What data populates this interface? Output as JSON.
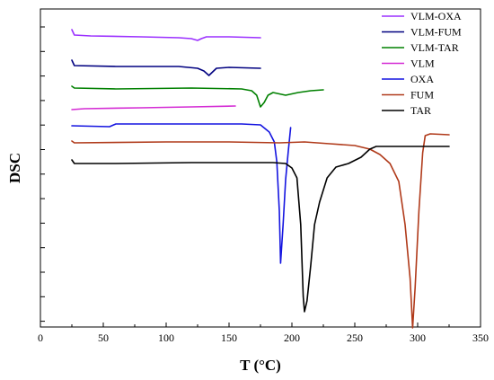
{
  "chart_data": {
    "type": "line",
    "xlabel": "T (°C)",
    "ylabel": "DSC",
    "xlim": [
      0,
      350
    ],
    "xticks": [
      0,
      50,
      100,
      150,
      200,
      250,
      300,
      350
    ],
    "legend_position": "top-right",
    "y_tick_labels_shown": false,
    "grid": false,
    "series": [
      {
        "name": "VLM-OXA",
        "color": "#9b30ff",
        "points": [
          [
            25,
            23
          ],
          [
            27,
            29
          ],
          [
            40,
            30
          ],
          [
            80,
            31
          ],
          [
            110,
            32
          ],
          [
            120,
            33
          ],
          [
            125,
            35
          ],
          [
            128,
            33
          ],
          [
            132,
            31
          ],
          [
            150,
            31
          ],
          [
            175,
            32
          ]
        ]
      },
      {
        "name": "VLM-FUM",
        "color": "#000080",
        "points": [
          [
            25,
            57
          ],
          [
            27,
            63
          ],
          [
            60,
            64
          ],
          [
            110,
            64
          ],
          [
            125,
            66
          ],
          [
            130,
            69
          ],
          [
            134,
            74
          ],
          [
            137,
            70
          ],
          [
            140,
            66
          ],
          [
            150,
            65
          ],
          [
            175,
            66
          ]
        ]
      },
      {
        "name": "VLM-TAR",
        "color": "#008000",
        "points": [
          [
            25,
            86
          ],
          [
            27,
            88
          ],
          [
            60,
            89
          ],
          [
            120,
            88
          ],
          [
            160,
            89
          ],
          [
            168,
            91
          ],
          [
            172,
            96
          ],
          [
            175,
            109
          ],
          [
            178,
            104
          ],
          [
            181,
            96
          ],
          [
            185,
            93
          ],
          [
            195,
            96
          ],
          [
            205,
            93
          ],
          [
            215,
            91
          ],
          [
            225,
            90
          ]
        ]
      },
      {
        "name": "VLM",
        "color": "#d42bd4",
        "points": [
          [
            25,
            112
          ],
          [
            35,
            111
          ],
          [
            80,
            110
          ],
          [
            120,
            109
          ],
          [
            155,
            108
          ]
        ]
      },
      {
        "name": "OXA",
        "color": "#1414e0",
        "points": [
          [
            25,
            130
          ],
          [
            55,
            131
          ],
          [
            60,
            128
          ],
          [
            110,
            128
          ],
          [
            160,
            128
          ],
          [
            175,
            129
          ],
          [
            182,
            137
          ],
          [
            186,
            148
          ],
          [
            188,
            170
          ],
          [
            190,
            225
          ],
          [
            191,
            283
          ],
          [
            193,
            240
          ],
          [
            195,
            190
          ],
          [
            197,
            160
          ],
          [
            199,
            132
          ]
        ]
      },
      {
        "name": "FUM",
        "color": "#b03a1a",
        "points": [
          [
            25,
            147
          ],
          [
            27,
            149
          ],
          [
            100,
            148
          ],
          [
            150,
            148
          ],
          [
            190,
            149
          ],
          [
            210,
            148
          ],
          [
            230,
            150
          ],
          [
            250,
            152
          ],
          [
            262,
            156
          ],
          [
            270,
            162
          ],
          [
            278,
            172
          ],
          [
            285,
            192
          ],
          [
            290,
            240
          ],
          [
            294,
            300
          ],
          [
            296,
            355
          ],
          [
            298,
            310
          ],
          [
            301,
            225
          ],
          [
            304,
            160
          ],
          [
            306,
            141
          ],
          [
            310,
            139
          ],
          [
            325,
            140
          ]
        ]
      },
      {
        "name": "TAR",
        "color": "#000000",
        "points": [
          [
            25,
            168
          ],
          [
            27,
            172
          ],
          [
            60,
            172
          ],
          [
            120,
            171
          ],
          [
            160,
            171
          ],
          [
            185,
            171
          ],
          [
            195,
            172
          ],
          [
            200,
            177
          ],
          [
            204,
            188
          ],
          [
            207,
            240
          ],
          [
            209,
            320
          ],
          [
            210,
            337
          ],
          [
            212,
            325
          ],
          [
            215,
            285
          ],
          [
            218,
            240
          ],
          [
            222,
            215
          ],
          [
            228,
            188
          ],
          [
            235,
            176
          ],
          [
            245,
            172
          ],
          [
            255,
            165
          ],
          [
            262,
            156
          ],
          [
            267,
            153
          ],
          [
            280,
            153
          ],
          [
            300,
            153
          ],
          [
            325,
            153
          ]
        ]
      }
    ]
  }
}
